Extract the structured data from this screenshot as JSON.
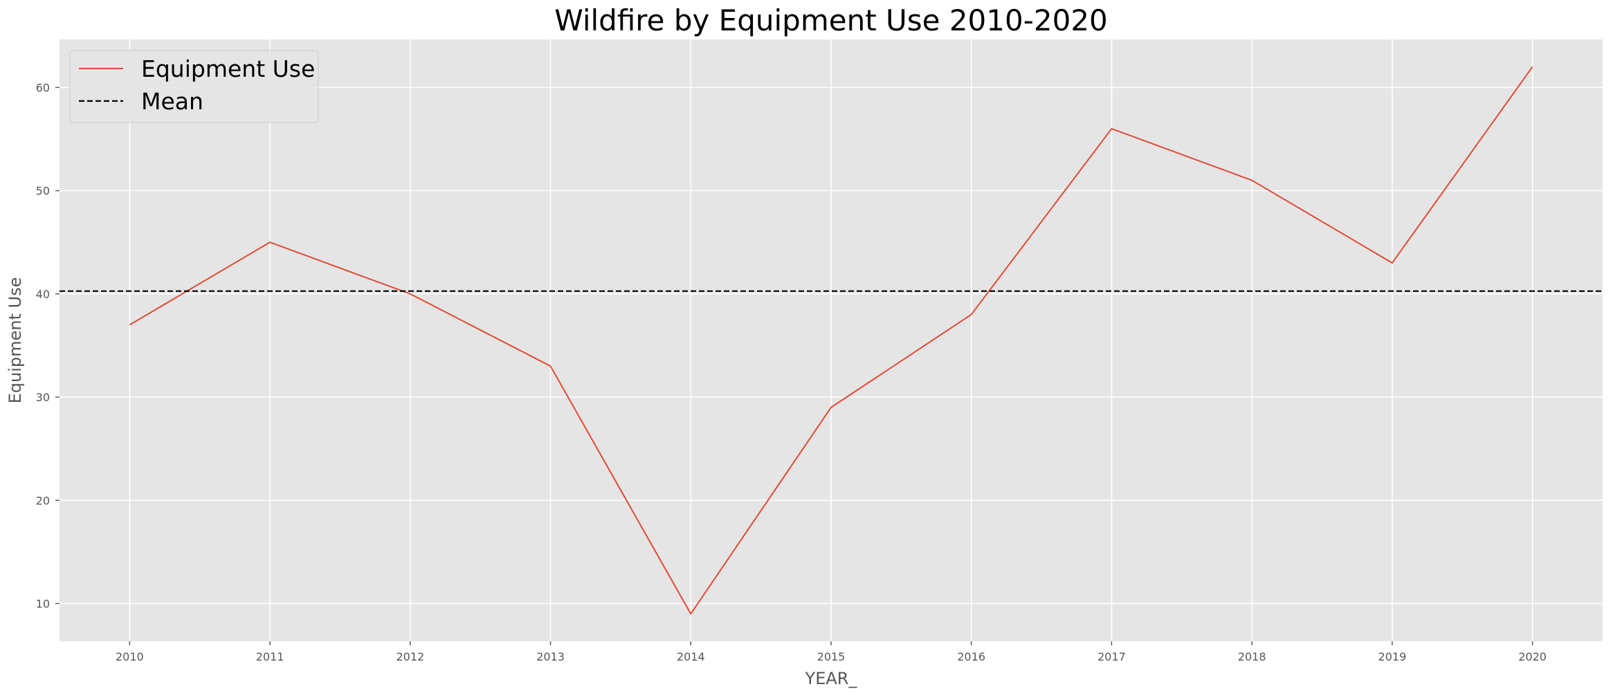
{
  "chart_data": {
    "type": "line",
    "title": "Wildfire by Equipment Use 2010-2020",
    "xlabel": "YEAR_",
    "ylabel": "Equipment Use",
    "x": [
      2010,
      2011,
      2012,
      2013,
      2014,
      2015,
      2016,
      2017,
      2018,
      2019,
      2020
    ],
    "series": [
      {
        "name": "Equipment Use",
        "values": [
          37,
          45,
          40,
          33,
          9,
          29,
          38,
          56,
          51,
          43,
          62
        ],
        "color": "#E24A33",
        "style": "solid"
      }
    ],
    "reference_lines": [
      {
        "name": "Mean",
        "value": 40.27,
        "color": "#000000",
        "style": "dashed"
      }
    ],
    "xlim": [
      2009.5,
      2020.5
    ],
    "ylim": [
      6.35,
      64.65
    ],
    "yticks": [
      10,
      20,
      30,
      40,
      50,
      60
    ],
    "xticks": [
      2010,
      2011,
      2012,
      2013,
      2014,
      2015,
      2016,
      2017,
      2018,
      2019,
      2020
    ],
    "grid": true,
    "legend_position": "top-left",
    "plot_background": "#E5E5E5",
    "grid_color": "#FFFFFF"
  }
}
